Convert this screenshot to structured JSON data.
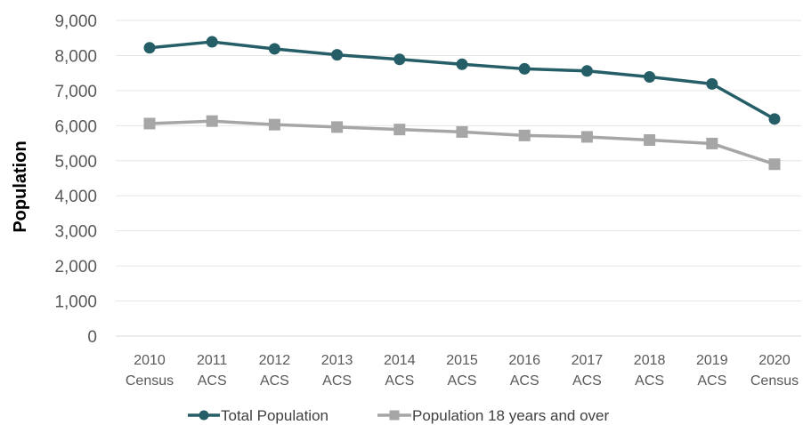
{
  "chart_data": {
    "type": "line",
    "title": "",
    "xlabel": "",
    "ylabel": "Population",
    "ylim": [
      0,
      9000
    ],
    "yticks": [
      "0",
      "1,000",
      "2,000",
      "3,000",
      "4,000",
      "5,000",
      "6,000",
      "7,000",
      "8,000",
      "9,000"
    ],
    "ytick_values": [
      0,
      1000,
      2000,
      3000,
      4000,
      5000,
      6000,
      7000,
      8000,
      9000
    ],
    "categories": [
      [
        "2010",
        "Census"
      ],
      [
        "2011",
        "ACS"
      ],
      [
        "2012",
        "ACS"
      ],
      [
        "2013",
        "ACS"
      ],
      [
        "2014",
        "ACS"
      ],
      [
        "2015",
        "ACS"
      ],
      [
        "2016",
        "ACS"
      ],
      [
        "2017",
        "ACS"
      ],
      [
        "2018",
        "ACS"
      ],
      [
        "2019",
        "ACS"
      ],
      [
        "2020",
        "Census"
      ]
    ],
    "grid": "horizontal",
    "legend_position": "bottom",
    "series": [
      {
        "name": "Total Population",
        "color": "#255e67",
        "marker": "circle",
        "values": [
          8220,
          8390,
          8190,
          8020,
          7890,
          7750,
          7620,
          7560,
          7390,
          7190,
          6190
        ]
      },
      {
        "name": "Population 18 years and over",
        "color": "#a6a6a6",
        "marker": "square",
        "values": [
          6060,
          6130,
          6030,
          5960,
          5890,
          5820,
          5720,
          5680,
          5590,
          5490,
          4900
        ]
      }
    ]
  }
}
